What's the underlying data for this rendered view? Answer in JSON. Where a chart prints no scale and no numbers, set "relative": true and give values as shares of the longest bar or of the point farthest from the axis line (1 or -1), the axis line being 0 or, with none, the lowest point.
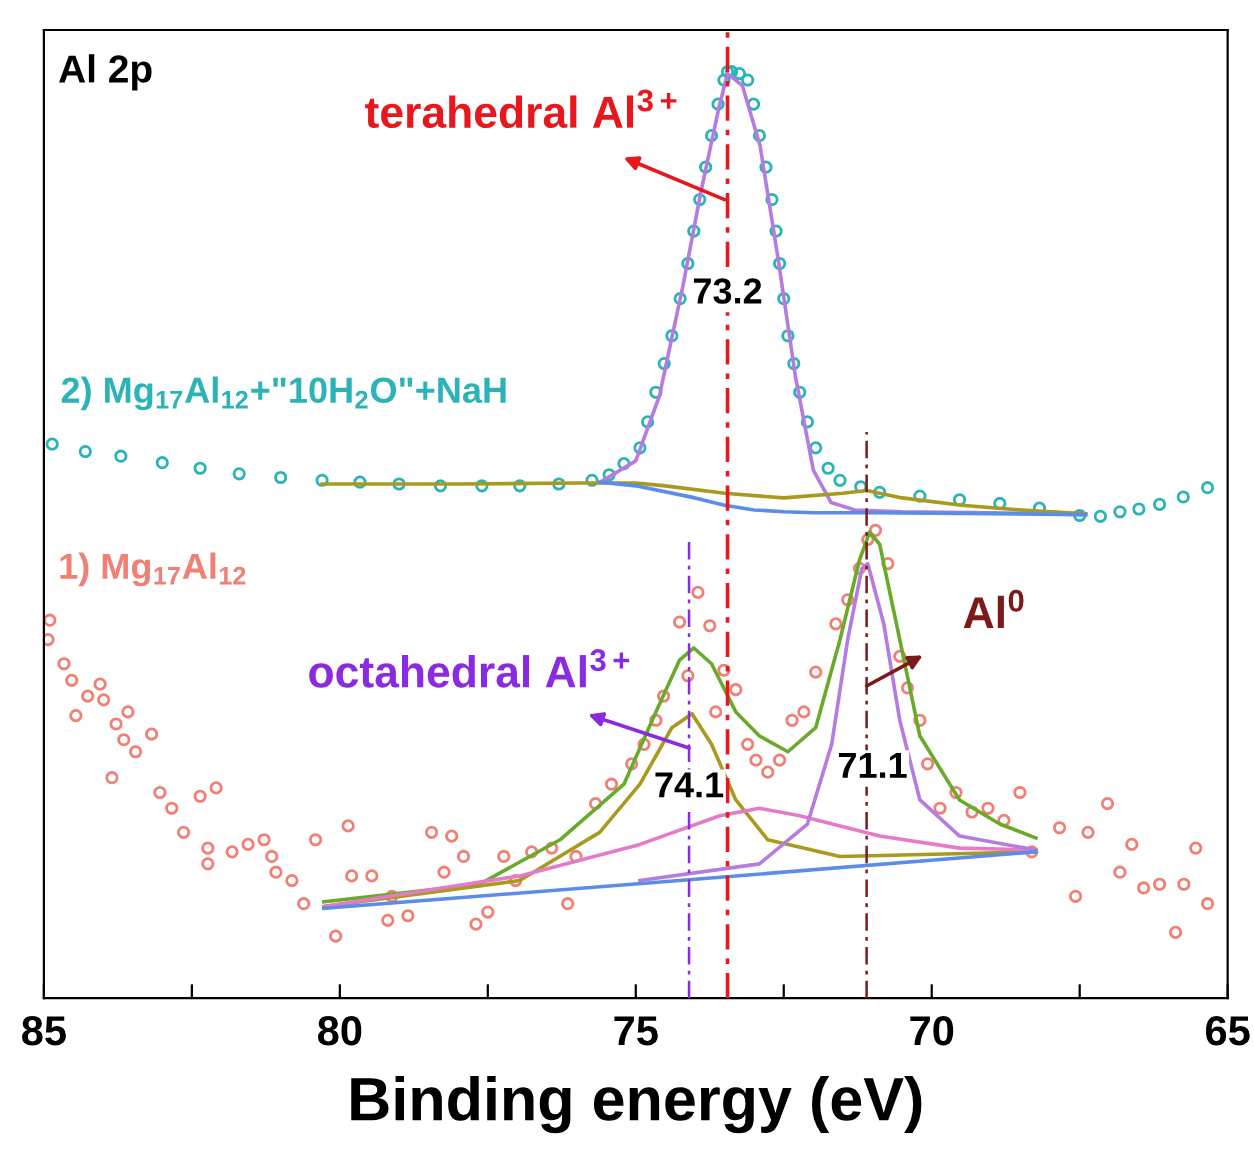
{
  "chart_data": {
    "type": "line",
    "relative": true,
    "xlabel": "Binding energy (eV)",
    "xlim": [
      85,
      65
    ],
    "xticks": [
      85,
      {
        "value": 82.5,
        "label": null
      },
      80,
      {
        "value": 77.5,
        "label": null
      },
      75,
      {
        "value": 72.5,
        "label": null
      },
      70,
      {
        "value": 67.5,
        "label": null
      },
      65
    ],
    "grid": false,
    "legend": false,
    "series": [
      {
        "type": "scatter",
        "name": "2) Mg$_{17}$Al$_{12}$+\"10H$_{2}$O\"+NaH",
        "color": "#2bb3b8",
        "marker": "circle",
        "x": [
          84.86,
          84.3,
          83.7,
          83.0,
          82.36,
          81.7,
          81.0,
          80.3,
          79.66,
          79.0,
          78.3,
          77.6,
          76.96,
          76.3,
          75.74,
          75.45,
          75.2,
          74.93,
          74.8,
          74.66,
          74.52,
          74.39,
          74.25,
          74.12,
          74.02,
          73.92,
          73.82,
          73.72,
          73.61,
          73.51,
          73.45,
          73.38,
          73.25,
          73.11,
          73.01,
          72.91,
          72.8,
          72.7,
          72.63,
          72.57,
          72.5,
          72.43,
          72.33,
          72.23,
          72.1,
          71.96,
          71.75,
          71.55,
          71.2,
          70.88,
          70.2,
          69.53,
          68.85,
          68.18,
          67.5,
          67.15,
          66.82,
          66.5,
          66.15,
          65.75,
          65.34
        ],
        "values": [
          0.598,
          0.59,
          0.585,
          0.578,
          0.572,
          0.566,
          0.562,
          0.559,
          0.557,
          0.555,
          0.553,
          0.553,
          0.553,
          0.555,
          0.559,
          0.565,
          0.577,
          0.594,
          0.622,
          0.654,
          0.685,
          0.715,
          0.755,
          0.793,
          0.828,
          0.862,
          0.897,
          0.931,
          0.965,
          0.991,
          1.0,
          1.0,
          0.998,
          0.991,
          0.965,
          0.931,
          0.897,
          0.862,
          0.828,
          0.793,
          0.755,
          0.715,
          0.685,
          0.654,
          0.622,
          0.594,
          0.572,
          0.559,
          0.552,
          0.546,
          0.542,
          0.538,
          0.534,
          0.529,
          0.521,
          0.52,
          0.525,
          0.528,
          0.533,
          0.541,
          0.551
        ]
      },
      {
        "color": "#b57be0",
        "x": [
          75.6,
          75.0,
          74.6,
          74.2,
          73.9,
          73.6,
          73.45,
          73.2,
          72.9,
          72.6,
          72.3,
          72.0,
          71.7,
          71.3,
          70.5,
          69.0,
          67.4
        ],
        "values": [
          0.557,
          0.58,
          0.65,
          0.77,
          0.87,
          0.96,
          0.998,
          0.985,
          0.92,
          0.8,
          0.67,
          0.57,
          0.535,
          0.527,
          0.525,
          0.524,
          0.522
        ]
      },
      {
        "color": "#a89a1e",
        "x": [
          80.3,
          78.0,
          76.0,
          75.0,
          74.5,
          73.5,
          72.5,
          71.5,
          71.1,
          70.5,
          69.5,
          68.5,
          67.4
        ],
        "values": [
          0.555,
          0.555,
          0.556,
          0.556,
          0.553,
          0.545,
          0.54,
          0.545,
          0.548,
          0.54,
          0.532,
          0.527,
          0.523
        ]
      },
      {
        "color": "#5b8de8",
        "x": [
          75.6,
          75.0,
          74.0,
          73.5,
          73.0,
          72.5,
          72.0,
          71.0,
          69.0,
          67.4
        ],
        "values": [
          0.557,
          0.553,
          0.54,
          0.532,
          0.527,
          0.525,
          0.524,
          0.524,
          0.523,
          0.522
        ]
      },
      {
        "type": "scatter",
        "name": "1) Mg$_{17}$Al$_{12}$",
        "color": "#f07f74",
        "marker": "circle",
        "x": [
          84.9,
          84.93,
          84.66,
          84.53,
          84.46,
          84.26,
          84.05,
          83.99,
          83.78,
          83.58,
          83.65,
          83.45,
          83.18,
          83.85,
          83.04,
          82.84,
          82.64,
          82.36,
          82.09,
          82.23,
          82.23,
          81.82,
          81.55,
          81.28,
          81.15,
          81.08,
          80.81,
          80.61,
          80.41,
          80.07,
          79.86,
          79.8,
          79.46,
          79.12,
          79.19,
          78.85,
          78.45,
          78.24,
          78.11,
          77.91,
          77.7,
          77.5,
          77.23,
          77.03,
          76.76,
          76.42,
          76.15,
          76.01,
          75.68,
          75.41,
          75.07,
          74.86,
          74.66,
          74.53,
          74.26,
          74.12,
          73.95,
          73.75,
          73.65,
          73.51,
          73.31,
          73.11,
          72.97,
          72.77,
          72.57,
          72.36,
          72.16,
          71.96,
          71.62,
          71.42,
          71.22,
          71.08,
          70.95,
          70.74,
          70.54,
          70.41,
          70.2,
          70.07,
          69.86,
          69.59,
          69.32,
          69.05,
          68.78,
          68.51,
          68.31,
          67.84,
          67.57,
          67.36,
          67.03,
          66.82,
          66.62,
          66.42,
          66.15,
          65.88,
          65.74,
          65.54,
          65.34
        ],
        "values": [
          0.408,
          0.387,
          0.361,
          0.343,
          0.305,
          0.326,
          0.339,
          0.322,
          0.296,
          0.309,
          0.279,
          0.266,
          0.285,
          0.238,
          0.222,
          0.205,
          0.179,
          0.218,
          0.227,
          0.162,
          0.145,
          0.158,
          0.166,
          0.171,
          0.153,
          0.136,
          0.127,
          0.102,
          0.171,
          0.067,
          0.186,
          0.132,
          0.132,
          0.11,
          0.084,
          0.089,
          0.179,
          0.136,
          0.175,
          0.153,
          0.08,
          0.093,
          0.153,
          0.127,
          0.158,
          0.162,
          0.102,
          0.153,
          0.21,
          0.231,
          0.253,
          0.274,
          0.3,
          0.326,
          0.406,
          0.348,
          0.438,
          0.402,
          0.309,
          0.354,
          0.333,
          0.274,
          0.257,
          0.244,
          0.257,
          0.3,
          0.309,
          0.352,
          0.404,
          0.43,
          0.464,
          0.495,
          0.505,
          0.469,
          0.369,
          0.335,
          0.3,
          0.253,
          0.205,
          0.222,
          0.201,
          0.205,
          0.192,
          0.222,
          0.158,
          0.184,
          0.11,
          0.179,
          0.21,
          0.136,
          0.166,
          0.119,
          0.123,
          0.071,
          0.123,
          0.162,
          0.102
        ]
      },
      {
        "color": "#6aaa2a",
        "x": [
          80.27,
          77.64,
          76.28,
          75.2,
          74.66,
          74.26,
          74.02,
          73.72,
          73.31,
          72.91,
          72.43,
          71.96,
          71.55,
          71.22,
          71.05,
          70.88,
          70.54,
          70.2,
          69.53,
          68.85,
          68.24
        ],
        "values": [
          0.104,
          0.123,
          0.171,
          0.231,
          0.309,
          0.365,
          0.378,
          0.361,
          0.309,
          0.283,
          0.266,
          0.292,
          0.387,
          0.473,
          0.503,
          0.49,
          0.387,
          0.283,
          0.214,
          0.188,
          0.173
        ]
      },
      {
        "color": "#a89a1e",
        "x": [
          80.27,
          76.96,
          75.61,
          74.93,
          74.39,
          74.05,
          73.72,
          73.31,
          72.77,
          71.55,
          68.24
        ],
        "values": [
          0.099,
          0.127,
          0.179,
          0.231,
          0.292,
          0.307,
          0.274,
          0.214,
          0.171,
          0.153,
          0.158
        ]
      },
      {
        "color": "#e57bc8",
        "x": [
          80.27,
          76.96,
          74.93,
          73.58,
          72.91,
          72.23,
          70.88,
          69.53,
          68.24
        ],
        "values": [
          0.099,
          0.132,
          0.166,
          0.197,
          0.205,
          0.197,
          0.175,
          0.162,
          0.16
        ]
      },
      {
        "color": "#b57be0",
        "x": [
          74.93,
          72.91,
          72.1,
          71.69,
          71.42,
          71.18,
          71.08,
          70.81,
          70.54,
          70.2,
          69.53,
          68.24
        ],
        "values": [
          0.127,
          0.145,
          0.188,
          0.274,
          0.387,
          0.464,
          0.469,
          0.404,
          0.3,
          0.214,
          0.175,
          0.16
        ]
      },
      {
        "color": "#5b8de8",
        "x": [
          80.27,
          74.26,
          68.24
        ],
        "values": [
          0.097,
          0.127,
          0.158
        ]
      },
      {
        "color": "#8a2be2",
        "line_style": "dashed",
        "x": [
          74.1,
          74.1
        ],
        "values": [
          0,
          0.497
        ]
      },
      {
        "color": "#7b1a1a",
        "line_style": "dashed",
        "x": [
          71.1,
          71.1
        ],
        "values": [
          0,
          0.611
        ]
      }
    ],
    "ref_lines": [
      {
        "axis": "x",
        "value": 73.45,
        "color": "#e8171d",
        "line_style": "dashed"
      }
    ],
    "annotations": [
      "Al 2p",
      {
        "text": "terahedral Al$^{3+}$",
        "x": 73.5,
        "y": 0.862
      },
      {
        "text": "73.2",
        "x": 73.45,
        "y": 0.76
      },
      {
        "text": "octahedral Al$^{3+}$",
        "x": 74.1,
        "y": 0.27
      },
      {
        "text": "74.1",
        "x": 74.1,
        "y": 0.227
      },
      {
        "text": "Al$^{0}$",
        "x": 71.1,
        "y": 0.337
      },
      {
        "text": "71.1",
        "x": 71.0,
        "y": 0.248
      }
    ]
  }
}
